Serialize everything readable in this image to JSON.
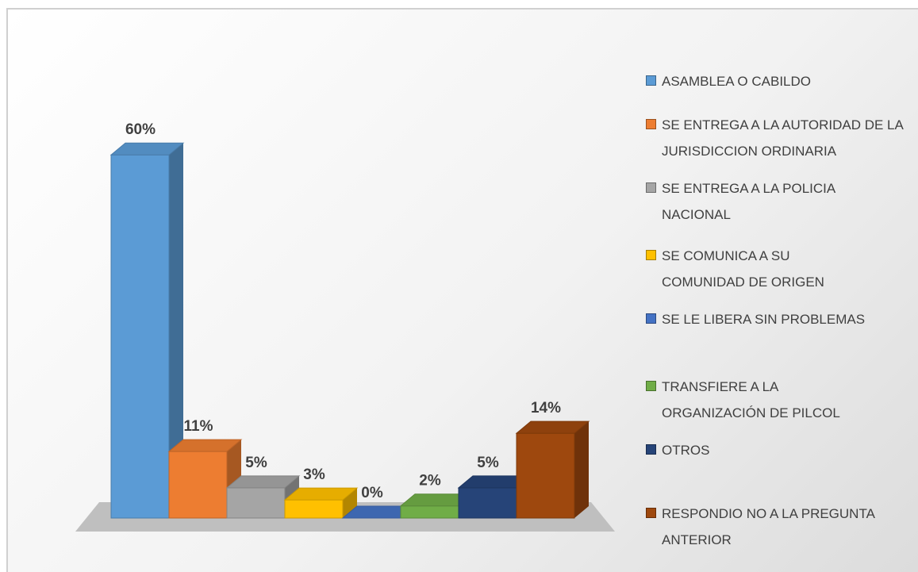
{
  "chart_data": {
    "type": "bar3d",
    "categories": [
      "ASAMBLEA O CABILDO",
      "SE ENTREGA A LA AUTORIDAD DE LA JURISDICCION ORDINARIA",
      "SE ENTREGA A LA POLICIA NACIONAL",
      "SE COMUNICA A SU COMUNIDAD DE ORIGEN",
      "SE LE LIBERA SIN PROBLEMAS",
      "TRANSFIERE A LA ORGANIZACIÓN DE PILCOL",
      "OTROS",
      "RESPONDIO NO A LA PREGUNTA ANTERIOR"
    ],
    "values": [
      60,
      11,
      5,
      3,
      0,
      2,
      5,
      14
    ],
    "value_labels": [
      "60%",
      "11%",
      "5%",
      "3%",
      "0%",
      "2%",
      "5%",
      "14%"
    ],
    "colors": [
      "#5b9bd5",
      "#ed7d31",
      "#a5a5a5",
      "#ffc000",
      "#4472c4",
      "#70ad47",
      "#264478",
      "#9e480e"
    ],
    "legend": "right"
  }
}
